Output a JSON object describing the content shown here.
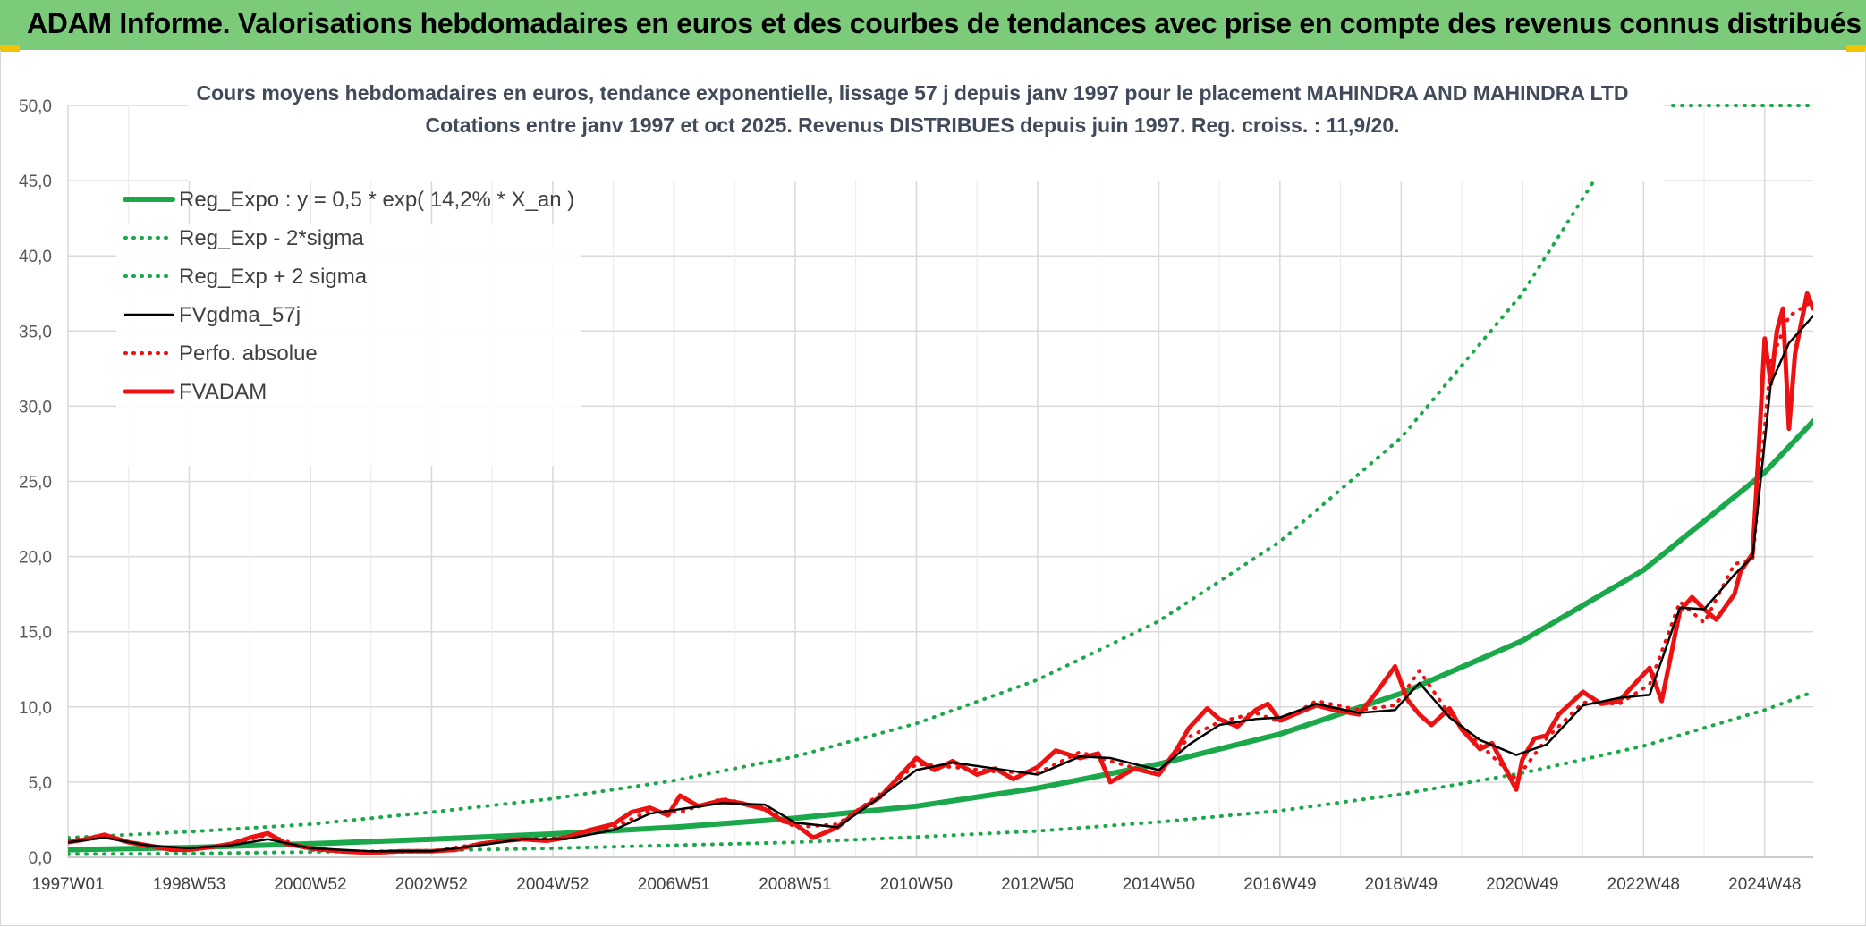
{
  "header": {
    "title": "ADAM Informe. Valorisations hebdomadaires en euros et des courbes de tendances avec prise en compte des revenus connus distribués"
  },
  "colors": {
    "header_bg": "#7ccb7b",
    "corner": "#f2c300",
    "green": "#1aa84a",
    "black": "#000000",
    "red": "#ee1111",
    "grid": "#d9d9d9"
  },
  "chart_data": {
    "type": "line",
    "title_line1": "Cours moyens hebdomadaires en euros, tendance exponentielle, lissage 57 j depuis janv 1997 pour le placement MAHINDRA AND MAHINDRA LTD",
    "title_line2": "Cotations entre janv 1997 et oct 2025. Revenus DISTRIBUES depuis juin 1997. Reg. croiss. : 11,9/20.",
    "xlabel": "",
    "ylabel": "",
    "x_range": [
      1997.0,
      2025.8
    ],
    "ylim": [
      0,
      50
    ],
    "y_ticks": [
      "0,0",
      "5,0",
      "10,0",
      "15,0",
      "20,0",
      "25,0",
      "30,0",
      "35,0",
      "40,0",
      "45,0",
      "50,0"
    ],
    "x_ticks": [
      {
        "label": "1997W01",
        "x": 1997.0
      },
      {
        "label": "1998W53",
        "x": 1999.0
      },
      {
        "label": "2000W52",
        "x": 2001.0
      },
      {
        "label": "2002W52",
        "x": 2003.0
      },
      {
        "label": "2004W52",
        "x": 2005.0
      },
      {
        "label": "2006W51",
        "x": 2007.0
      },
      {
        "label": "2008W51",
        "x": 2009.0
      },
      {
        "label": "2010W50",
        "x": 2011.0
      },
      {
        "label": "2012W50",
        "x": 2013.0
      },
      {
        "label": "2014W50",
        "x": 2015.0
      },
      {
        "label": "2016W49",
        "x": 2017.0
      },
      {
        "label": "2018W49",
        "x": 2019.0
      },
      {
        "label": "2020W49",
        "x": 2021.0
      },
      {
        "label": "2022W48",
        "x": 2023.0
      },
      {
        "label": "2024W48",
        "x": 2025.0
      }
    ],
    "grid": true,
    "legend_position": "top-left",
    "series": [
      {
        "name": "Reg_Expo : y = 0,5 * exp( 14,2% *  X_an )",
        "style": "solid-thick",
        "color": "#1aa84a",
        "x": [
          1997.0,
          1999.0,
          2001.0,
          2003.0,
          2005.0,
          2007.0,
          2009.0,
          2011.0,
          2013.0,
          2015.0,
          2017.0,
          2019.0,
          2021.0,
          2023.0,
          2025.0,
          2025.8
        ],
        "y": [
          0.5,
          0.65,
          0.9,
          1.2,
          1.55,
          2.0,
          2.6,
          3.4,
          4.6,
          6.2,
          8.2,
          10.9,
          14.4,
          19.1,
          25.6,
          29.0
        ]
      },
      {
        "name": "Reg_Exp - 2*sigma",
        "style": "dotted",
        "color": "#1aa84a",
        "x": [
          1997.0,
          1999.0,
          2001.0,
          2003.0,
          2005.0,
          2007.0,
          2009.0,
          2011.0,
          2013.0,
          2015.0,
          2017.0,
          2019.0,
          2021.0,
          2023.0,
          2025.0,
          2025.8
        ],
        "y": [
          0.2,
          0.25,
          0.35,
          0.45,
          0.6,
          0.8,
          1.0,
          1.35,
          1.75,
          2.35,
          3.1,
          4.2,
          5.6,
          7.4,
          9.8,
          11.0
        ]
      },
      {
        "name": "Reg_Exp + 2 sigma",
        "style": "dotted",
        "color": "#1aa84a",
        "x": [
          1997.0,
          1999.0,
          2001.0,
          2003.0,
          2005.0,
          2007.0,
          2009.0,
          2011.0,
          2013.0,
          2015.0,
          2017.0,
          2019.0,
          2021.0,
          2022.5
        ],
        "y": [
          1.3,
          1.7,
          2.2,
          3.0,
          3.9,
          5.1,
          6.7,
          8.9,
          11.8,
          15.7,
          21.0,
          27.9,
          37.5,
          47.0
        ]
      },
      {
        "name": "FVgdma_57j",
        "style": "solid-thin",
        "color": "#000000",
        "x": [
          1997.0,
          1997.6,
          1998.3,
          1999.0,
          1999.7,
          2000.3,
          2001.0,
          2002.0,
          2003.0,
          2003.8,
          2004.5,
          2005.2,
          2006.0,
          2006.6,
          2007.1,
          2007.8,
          2008.5,
          2009.0,
          2009.7,
          2010.4,
          2011.0,
          2011.6,
          2012.3,
          2013.0,
          2013.7,
          2014.2,
          2015.0,
          2015.5,
          2016.0,
          2016.6,
          2017.0,
          2017.6,
          2018.3,
          2018.9,
          2019.3,
          2019.8,
          2020.3,
          2020.9,
          2021.4,
          2022.0,
          2022.6,
          2023.1,
          2023.6,
          2024.0,
          2024.5,
          2024.8,
          2025.1,
          2025.4,
          2025.8
        ],
        "y": [
          1.0,
          1.3,
          0.8,
          0.6,
          0.8,
          1.2,
          0.6,
          0.4,
          0.4,
          0.8,
          1.2,
          1.2,
          1.8,
          2.9,
          3.2,
          3.6,
          3.5,
          2.3,
          2.0,
          4.0,
          5.8,
          6.3,
          5.9,
          5.5,
          6.7,
          6.6,
          5.8,
          7.5,
          8.8,
          9.2,
          9.3,
          10.2,
          9.6,
          9.8,
          11.6,
          9.3,
          7.8,
          6.8,
          7.5,
          10.1,
          10.6,
          10.8,
          16.6,
          16.5,
          18.8,
          20.0,
          31.5,
          34.2,
          36.0
        ]
      },
      {
        "name": "Perfo. absolue",
        "style": "dotted",
        "color": "#ee1111",
        "x": [
          1997.0,
          1997.6,
          1998.3,
          1999.0,
          1999.7,
          2000.3,
          2001.0,
          2002.0,
          2003.0,
          2003.8,
          2004.5,
          2005.2,
          2006.0,
          2006.6,
          2007.1,
          2007.8,
          2008.5,
          2009.0,
          2009.7,
          2010.4,
          2011.0,
          2011.6,
          2012.3,
          2013.0,
          2013.7,
          2014.2,
          2015.0,
          2015.5,
          2016.0,
          2016.6,
          2017.0,
          2017.6,
          2018.3,
          2018.9,
          2019.3,
          2019.8,
          2020.3,
          2020.9,
          2021.4,
          2022.0,
          2022.6,
          2023.1,
          2023.6,
          2024.0,
          2024.5,
          2024.8,
          2025.1,
          2025.4,
          2025.8
        ],
        "y": [
          1.1,
          1.4,
          0.7,
          0.5,
          0.9,
          1.5,
          0.5,
          0.3,
          0.4,
          0.9,
          1.2,
          1.3,
          2.0,
          3.1,
          3.0,
          3.9,
          3.3,
          2.0,
          2.2,
          4.2,
          6.2,
          6.0,
          5.7,
          5.6,
          7.0,
          6.4,
          5.5,
          8.0,
          9.0,
          9.6,
          9.0,
          10.4,
          9.8,
          10.1,
          12.4,
          9.5,
          7.5,
          5.2,
          7.9,
          10.3,
          10.2,
          11.5,
          17.0,
          15.6,
          19.5,
          19.8,
          33.0,
          36.0,
          37.0
        ]
      },
      {
        "name": "FVADAM",
        "style": "solid-thick",
        "color": "#ee1111",
        "x": [
          1997.0,
          1997.3,
          1997.6,
          1998.0,
          1998.3,
          1998.7,
          1999.0,
          1999.4,
          1999.7,
          2000.0,
          2000.3,
          2000.6,
          2001.0,
          2001.5,
          2002.0,
          2002.5,
          2003.0,
          2003.4,
          2003.8,
          2004.2,
          2004.5,
          2004.9,
          2005.2,
          2005.6,
          2006.0,
          2006.3,
          2006.6,
          2006.9,
          2007.1,
          2007.4,
          2007.8,
          2008.1,
          2008.5,
          2008.8,
          2009.0,
          2009.3,
          2009.7,
          2010.0,
          2010.4,
          2010.7,
          2011.0,
          2011.3,
          2011.6,
          2012.0,
          2012.3,
          2012.6,
          2013.0,
          2013.3,
          2013.7,
          2014.0,
          2014.2,
          2014.6,
          2015.0,
          2015.3,
          2015.5,
          2015.8,
          2016.0,
          2016.3,
          2016.6,
          2016.8,
          2017.0,
          2017.3,
          2017.6,
          2017.9,
          2018.3,
          2018.6,
          2018.9,
          2019.1,
          2019.3,
          2019.5,
          2019.8,
          2020.0,
          2020.3,
          2020.5,
          2020.9,
          2021.0,
          2021.2,
          2021.4,
          2021.6,
          2022.0,
          2022.3,
          2022.6,
          2022.8,
          2023.1,
          2023.3,
          2023.6,
          2023.8,
          2024.0,
          2024.2,
          2024.5,
          2024.6,
          2024.8,
          2024.9,
          2025.0,
          2025.1,
          2025.2,
          2025.3,
          2025.4,
          2025.5,
          2025.6,
          2025.7,
          2025.8
        ],
        "y": [
          1.0,
          1.2,
          1.5,
          1.0,
          0.8,
          0.5,
          0.5,
          0.7,
          0.9,
          1.3,
          1.6,
          0.9,
          0.6,
          0.4,
          0.3,
          0.4,
          0.4,
          0.5,
          0.9,
          1.1,
          1.2,
          1.1,
          1.3,
          1.8,
          2.2,
          3.0,
          3.3,
          2.8,
          4.1,
          3.4,
          3.8,
          3.6,
          3.2,
          2.4,
          2.2,
          1.3,
          2.0,
          3.0,
          4.0,
          5.3,
          6.6,
          5.8,
          6.4,
          5.5,
          5.9,
          5.2,
          6.0,
          7.1,
          6.6,
          6.9,
          5.0,
          5.9,
          5.5,
          7.2,
          8.6,
          9.9,
          9.2,
          8.7,
          9.8,
          10.2,
          9.1,
          9.6,
          10.1,
          9.8,
          9.5,
          11.0,
          12.7,
          10.5,
          9.5,
          8.8,
          9.9,
          8.5,
          7.2,
          7.6,
          4.5,
          6.5,
          7.9,
          8.1,
          9.5,
          11.0,
          10.2,
          10.4,
          11.3,
          12.6,
          10.4,
          16.4,
          17.3,
          16.5,
          15.8,
          17.5,
          19.0,
          20.2,
          27.0,
          34.5,
          31.5,
          35.0,
          36.5,
          28.5,
          33.5,
          35.5,
          37.5,
          36.5
        ]
      }
    ]
  }
}
